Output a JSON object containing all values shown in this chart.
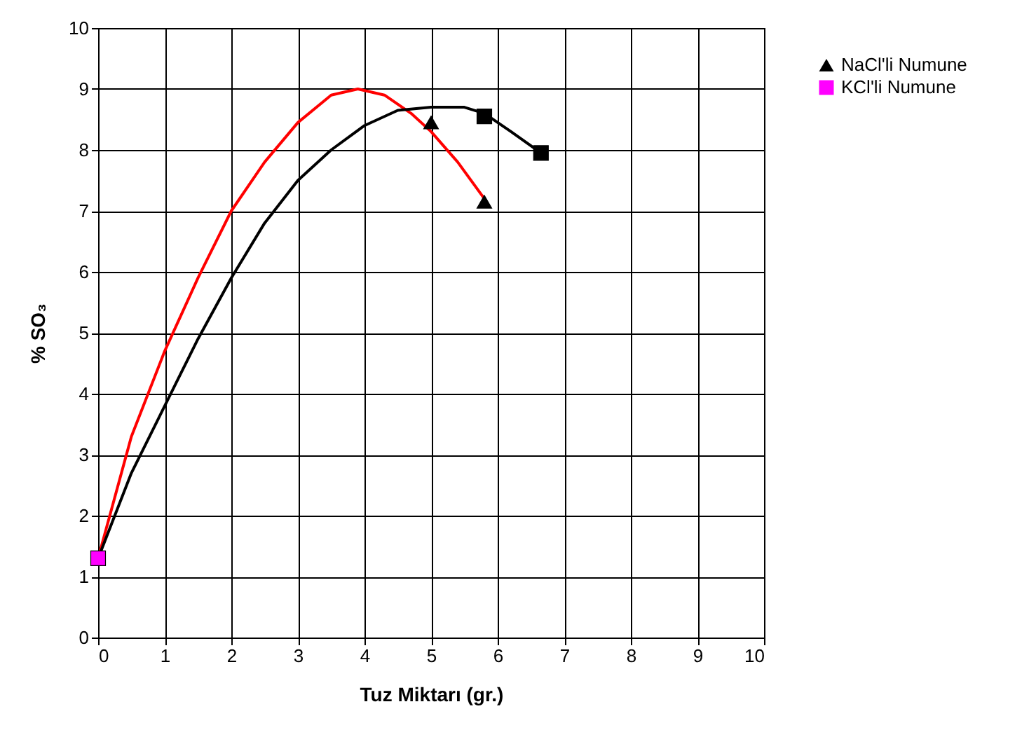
{
  "chart_data": {
    "type": "scatter",
    "xlabel": "Tuz Miktarı (gr.)",
    "ylabel": "% SO₃",
    "xlim": [
      0,
      10
    ],
    "ylim": [
      0,
      10
    ],
    "xticks": [
      0,
      1,
      2,
      3,
      4,
      5,
      6,
      7,
      8,
      9,
      10
    ],
    "yticks": [
      0,
      1,
      2,
      3,
      4,
      5,
      6,
      7,
      8,
      9,
      10
    ],
    "grid": true,
    "legend": "right",
    "series": [
      {
        "name": "NaCl'li Numune",
        "color": "#000000",
        "marker": "triangle",
        "x": [
          5,
          5.8
        ],
        "values": [
          8.45,
          7.15
        ]
      },
      {
        "name": "KCl'li Numune",
        "color": "#ff00ff",
        "colors": [
          "#ff00ff",
          "#000000",
          "#000000"
        ],
        "marker": "square",
        "x": [
          0,
          5.8,
          6.65
        ],
        "values": [
          1.3,
          8.55,
          7.95
        ]
      },
      {
        "type": "line",
        "color": "#ff0000",
        "x": [
          0,
          0.5,
          1,
          1.5,
          2,
          2.5,
          3,
          3.5,
          3.9,
          4.3,
          4.7,
          5,
          5.4,
          5.8
        ],
        "values": [
          1.3,
          3.3,
          4.7,
          5.9,
          7.0,
          7.8,
          8.45,
          8.9,
          9.0,
          8.9,
          8.6,
          8.3,
          7.8,
          7.2
        ]
      },
      {
        "type": "line",
        "color": "#000000",
        "x": [
          0,
          0.5,
          1,
          1.5,
          2,
          2.5,
          3,
          3.5,
          4,
          4.5,
          5,
          5.5,
          5.8,
          6.2,
          6.65
        ],
        "values": [
          1.3,
          2.7,
          3.8,
          4.9,
          5.9,
          6.8,
          7.5,
          8.0,
          8.4,
          8.65,
          8.7,
          8.7,
          8.6,
          8.3,
          7.95
        ]
      }
    ]
  }
}
